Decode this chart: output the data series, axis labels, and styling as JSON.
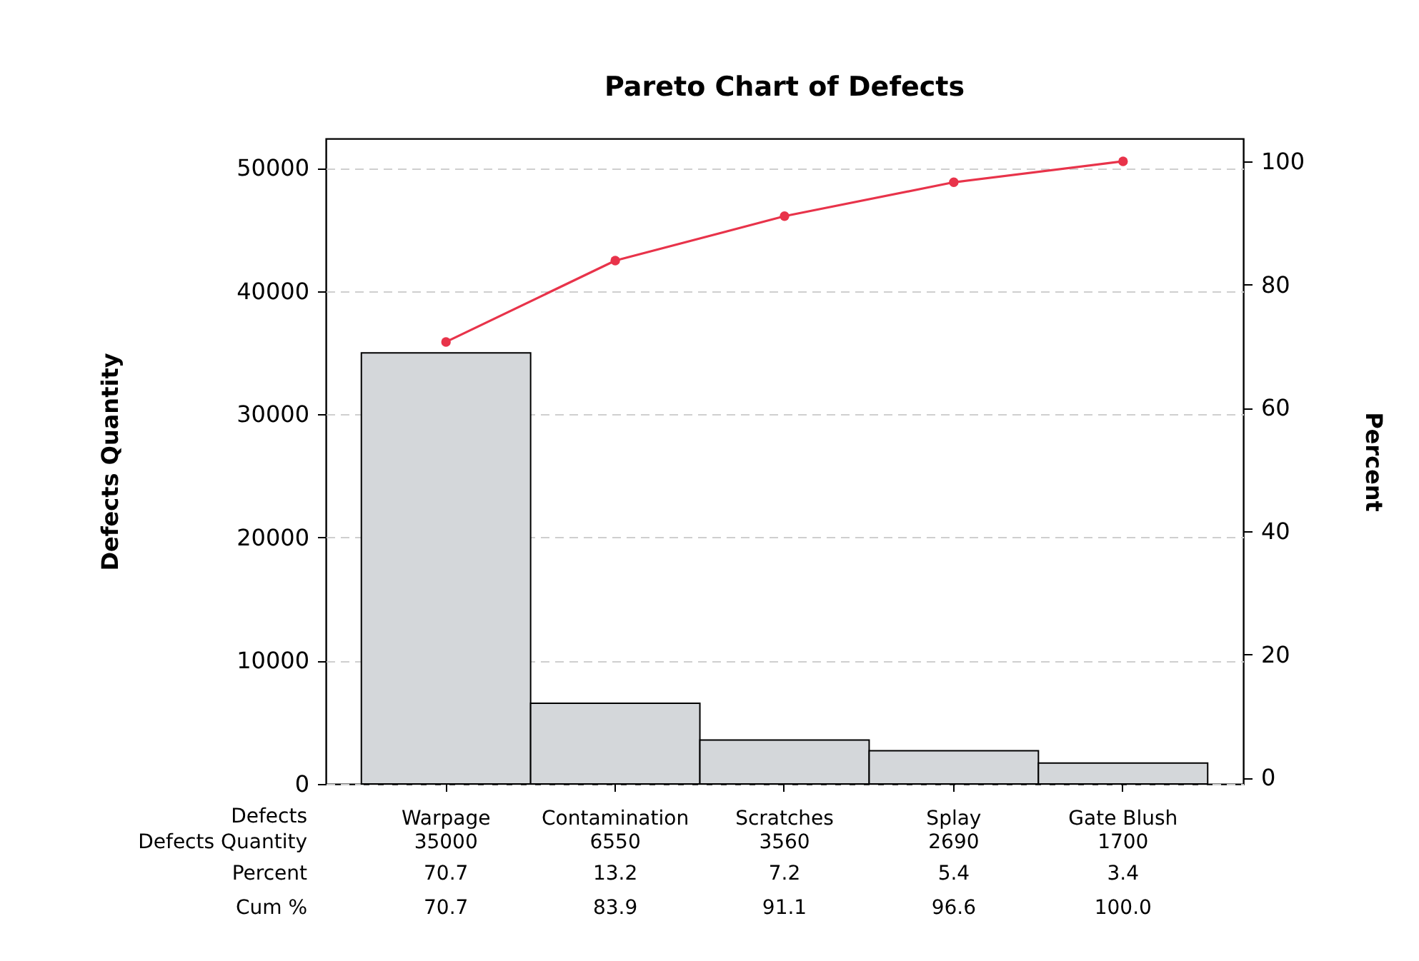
{
  "chart_data": {
    "type": "bar",
    "title": "Pareto Chart of Defects",
    "xlabel": "Defects",
    "ylabel": "Defects Quantity",
    "y2label": "Percent",
    "categories": [
      "Warpage",
      "Contamination",
      "Scratches",
      "Splay",
      "Gate Blush"
    ],
    "series": [
      {
        "color": "#d4d7da",
        "values": [
          35000,
          6550,
          3560,
          2690,
          1700
        ]
      },
      {
        "type": "line",
        "axis": "y2",
        "color": "#e8334a",
        "values": [
          70.7,
          83.9,
          91.1,
          96.6,
          100.0
        ],
        "value_labels": [
          "70.7",
          "83.9",
          "91.1",
          "96.6",
          "100.0"
        ]
      }
    ],
    "annotations": [
      "Defects Quantity",
      "Percent",
      "Cum %",
      "70.7",
      "13.2",
      "7.2",
      "5.4",
      "3.4"
    ],
    "data_labels": true,
    "marker": "circle",
    "grid": "y",
    "legend": false,
    "ylim": [
      0,
      52400
    ],
    "yticks": [
      0,
      10000,
      20000,
      30000,
      40000,
      50000
    ],
    "y2lim": [
      -1,
      103.7
    ],
    "y2ticks": [
      0,
      20,
      40,
      60,
      80,
      100
    ]
  }
}
